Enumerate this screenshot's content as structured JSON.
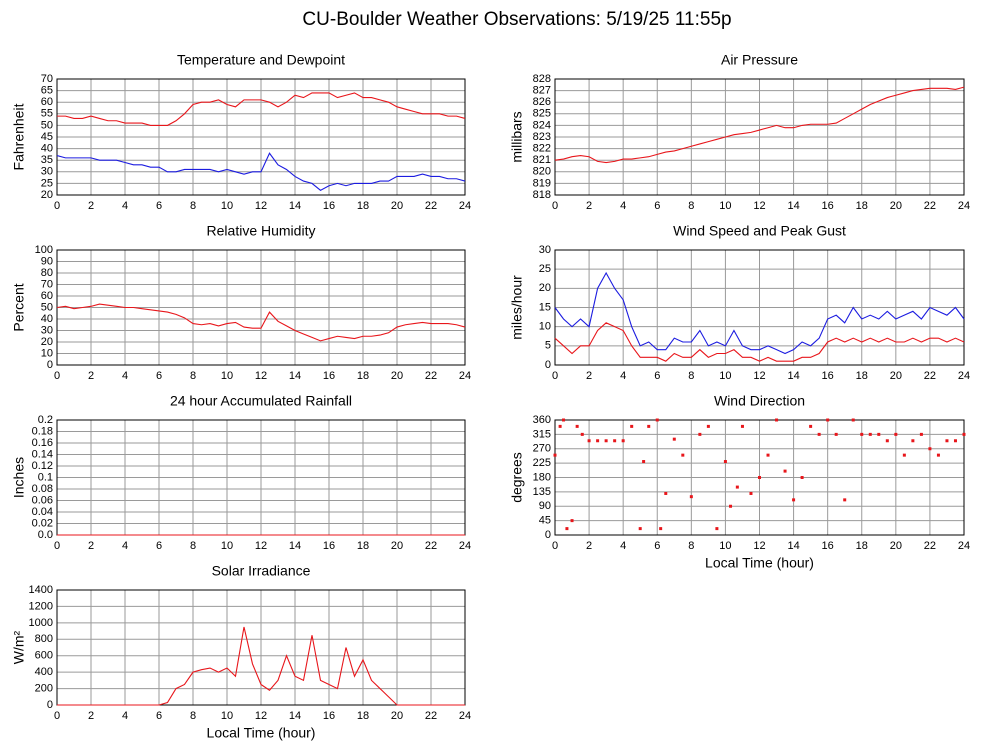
{
  "page_title": "CU-Boulder Weather Observations: 5/19/25 11:55p",
  "chart_data": [
    {
      "type": "line",
      "title": "Temperature and Dewpoint",
      "y_label": "Fahrenheit",
      "grid": true,
      "xlim": [
        0,
        24
      ],
      "xticks": [
        0,
        2,
        4,
        6,
        8,
        10,
        12,
        14,
        16,
        18,
        20,
        22,
        24
      ],
      "ylim": [
        20,
        70
      ],
      "yticks": [
        20,
        25,
        30,
        35,
        40,
        45,
        50,
        55,
        60,
        65,
        70
      ],
      "x": [
        0,
        0.5,
        1,
        1.5,
        2,
        2.5,
        3,
        3.5,
        4,
        4.5,
        5,
        5.5,
        6,
        6.5,
        7,
        7.5,
        8,
        8.5,
        9,
        9.5,
        10,
        10.5,
        11,
        11.5,
        12,
        12.5,
        13,
        13.5,
        14,
        14.5,
        15,
        15.5,
        16,
        16.5,
        17,
        17.5,
        18,
        18.5,
        19,
        19.5,
        20,
        20.5,
        21,
        21.5,
        22,
        22.5,
        23,
        23.5,
        24
      ],
      "series": [
        {
          "color": "#e8161b",
          "values": [
            54,
            54,
            53,
            53,
            54,
            53,
            52,
            52,
            51,
            51,
            51,
            50,
            50,
            50,
            52,
            55,
            59,
            60,
            60,
            61,
            59,
            58,
            61,
            61,
            61,
            60,
            58,
            60,
            63,
            62,
            64,
            64,
            64,
            62,
            63,
            64,
            62,
            62,
            61,
            60,
            58,
            57,
            56,
            55,
            55,
            55,
            54,
            54,
            53
          ]
        },
        {
          "color": "#1c1ce0",
          "values": [
            37,
            36,
            36,
            36,
            36,
            35,
            35,
            35,
            34,
            33,
            33,
            32,
            32,
            30,
            30,
            31,
            31,
            31,
            31,
            30,
            31,
            30,
            29,
            30,
            30,
            38,
            33,
            31,
            28,
            26,
            25,
            22,
            24,
            25,
            24,
            25,
            25,
            25,
            26,
            26,
            28,
            28,
            28,
            29,
            28,
            28,
            27,
            27,
            26
          ]
        }
      ]
    },
    {
      "type": "line",
      "title": "Air Pressure",
      "y_label": "millibars",
      "grid": true,
      "xlim": [
        0,
        24
      ],
      "xticks": [
        0,
        2,
        4,
        6,
        8,
        10,
        12,
        14,
        16,
        18,
        20,
        22,
        24
      ],
      "ylim": [
        818,
        828
      ],
      "yticks": [
        818,
        819,
        820,
        821,
        822,
        823,
        824,
        825,
        826,
        827,
        828
      ],
      "x": [
        0,
        0.5,
        1,
        1.5,
        2,
        2.5,
        3,
        3.5,
        4,
        4.5,
        5,
        5.5,
        6,
        6.5,
        7,
        7.5,
        8,
        8.5,
        9,
        9.5,
        10,
        10.5,
        11,
        11.5,
        12,
        12.5,
        13,
        13.5,
        14,
        14.5,
        15,
        15.5,
        16,
        16.5,
        17,
        17.5,
        18,
        18.5,
        19,
        19.5,
        20,
        20.5,
        21,
        21.5,
        22,
        22.5,
        23,
        23.5,
        24
      ],
      "series": [
        {
          "color": "#e8161b",
          "values": [
            821,
            821.1,
            821.3,
            821.4,
            821.3,
            820.9,
            820.8,
            820.9,
            821.1,
            821.1,
            821.2,
            821.3,
            821.5,
            821.7,
            821.8,
            822,
            822.2,
            822.4,
            822.6,
            822.8,
            823,
            823.2,
            823.3,
            823.4,
            823.6,
            823.8,
            824,
            823.8,
            823.8,
            824,
            824.1,
            824.1,
            824.1,
            824.2,
            824.6,
            825,
            825.4,
            825.8,
            826.1,
            826.4,
            826.6,
            826.8,
            827,
            827.1,
            827.2,
            827.2,
            827.2,
            827.1,
            827.3
          ]
        }
      ]
    },
    {
      "type": "line",
      "title": "Relative Humidity",
      "y_label": "Percent",
      "grid": true,
      "xlim": [
        0,
        24
      ],
      "xticks": [
        0,
        2,
        4,
        6,
        8,
        10,
        12,
        14,
        16,
        18,
        20,
        22,
        24
      ],
      "ylim": [
        0,
        100
      ],
      "yticks": [
        0,
        10,
        20,
        30,
        40,
        50,
        60,
        70,
        80,
        90,
        100
      ],
      "x": [
        0,
        0.5,
        1,
        1.5,
        2,
        2.5,
        3,
        3.5,
        4,
        4.5,
        5,
        5.5,
        6,
        6.5,
        7,
        7.5,
        8,
        8.5,
        9,
        9.5,
        10,
        10.5,
        11,
        11.5,
        12,
        12.5,
        13,
        13.5,
        14,
        14.5,
        15,
        15.5,
        16,
        16.5,
        17,
        17.5,
        18,
        18.5,
        19,
        19.5,
        20,
        20.5,
        21,
        21.5,
        22,
        22.5,
        23,
        23.5,
        24
      ],
      "series": [
        {
          "color": "#e8161b",
          "values": [
            50,
            51,
            49,
            50,
            51,
            53,
            52,
            51,
            50,
            50,
            49,
            48,
            47,
            46,
            44,
            41,
            36,
            35,
            36,
            34,
            36,
            37,
            33,
            32,
            32,
            46,
            38,
            34,
            30,
            27,
            24,
            21,
            23,
            25,
            24,
            23,
            25,
            25,
            26,
            28,
            33,
            35,
            36,
            37,
            36,
            36,
            36,
            35,
            33
          ]
        }
      ]
    },
    {
      "type": "line",
      "title": "Wind Speed and Peak Gust",
      "y_label": "miles/hour",
      "grid": true,
      "xlim": [
        0,
        24
      ],
      "xticks": [
        0,
        2,
        4,
        6,
        8,
        10,
        12,
        14,
        16,
        18,
        20,
        22,
        24
      ],
      "ylim": [
        0,
        30
      ],
      "yticks": [
        0,
        5,
        10,
        15,
        20,
        25,
        30
      ],
      "x": [
        0,
        0.5,
        1,
        1.5,
        2,
        2.5,
        3,
        3.5,
        4,
        4.5,
        5,
        5.5,
        6,
        6.5,
        7,
        7.5,
        8,
        8.5,
        9,
        9.5,
        10,
        10.5,
        11,
        11.5,
        12,
        12.5,
        13,
        13.5,
        14,
        14.5,
        15,
        15.5,
        16,
        16.5,
        17,
        17.5,
        18,
        18.5,
        19,
        19.5,
        20,
        20.5,
        21,
        21.5,
        22,
        22.5,
        23,
        23.5,
        24
      ],
      "series": [
        {
          "color": "#1c1ce0",
          "values": [
            15,
            12,
            10,
            12,
            10,
            20,
            24,
            20,
            17,
            10,
            5,
            6,
            4,
            4,
            7,
            6,
            6,
            9,
            5,
            6,
            5,
            9,
            5,
            4,
            4,
            5,
            4,
            3,
            4,
            6,
            5,
            7,
            12,
            13,
            11,
            15,
            12,
            13,
            12,
            14,
            12,
            13,
            14,
            12,
            15,
            14,
            13,
            15,
            12
          ]
        },
        {
          "color": "#e8161b",
          "values": [
            7,
            5,
            3,
            5,
            5,
            9,
            11,
            10,
            9,
            5,
            2,
            2,
            2,
            1,
            3,
            2,
            2,
            4,
            2,
            3,
            3,
            4,
            2,
            2,
            1,
            2,
            1,
            1,
            1,
            2,
            2,
            3,
            6,
            7,
            6,
            7,
            6,
            7,
            6,
            7,
            6,
            6,
            7,
            6,
            7,
            7,
            6,
            7,
            6
          ]
        }
      ]
    },
    {
      "type": "line",
      "title": "24 hour Accumulated Rainfall",
      "y_label": "Inches",
      "grid": true,
      "xlim": [
        0,
        24
      ],
      "xticks": [
        0,
        2,
        4,
        6,
        8,
        10,
        12,
        14,
        16,
        18,
        20,
        22,
        24
      ],
      "ylim": [
        0,
        0.2
      ],
      "yticks": [
        {
          "value": 0,
          "label": "0.0"
        },
        0.02,
        0.04,
        0.06,
        0.08,
        0.1,
        0.12,
        0.14,
        0.16,
        0.18,
        0.2
      ],
      "x": [
        0,
        24
      ],
      "series": [
        {
          "color": "#e8161b",
          "values": [
            0,
            0
          ]
        }
      ]
    },
    {
      "type": "scatter",
      "title": "Wind Direction",
      "y_label": "degrees",
      "x_label": "Local Time (hour)",
      "grid": true,
      "xlim": [
        0,
        24
      ],
      "xticks": [
        0,
        2,
        4,
        6,
        8,
        10,
        12,
        14,
        16,
        18,
        20,
        22,
        24
      ],
      "ylim": [
        0,
        360
      ],
      "yticks": [
        0,
        45,
        90,
        135,
        180,
        225,
        270,
        315,
        360
      ],
      "x": [
        0,
        0.3,
        0.5,
        0.7,
        1,
        1.3,
        1.6,
        2,
        2.5,
        3,
        3.5,
        4,
        4.5,
        5,
        5.2,
        5.5,
        6,
        6.2,
        6.5,
        7,
        7.5,
        8,
        8.5,
        9,
        9.5,
        10,
        10.3,
        10.7,
        11,
        11.5,
        12,
        12.5,
        13,
        13.5,
        14,
        14.5,
        15,
        15.5,
        16,
        16.5,
        17,
        17.5,
        18,
        18.5,
        19,
        19.5,
        20,
        20.5,
        21,
        21.5,
        22,
        22.5,
        23,
        23.5,
        24
      ],
      "series": [
        {
          "color": "#e8161b",
          "values": [
            250,
            340,
            360,
            20,
            45,
            340,
            315,
            295,
            295,
            295,
            295,
            295,
            340,
            20,
            230,
            340,
            360,
            20,
            130,
            300,
            250,
            120,
            315,
            340,
            20,
            230,
            90,
            150,
            340,
            130,
            180,
            250,
            360,
            200,
            110,
            180,
            340,
            315,
            360,
            315,
            110,
            360,
            315,
            315,
            315,
            295,
            315,
            250,
            295,
            315,
            270,
            250,
            295,
            295,
            315
          ]
        }
      ]
    },
    {
      "type": "line",
      "title": "Solar Irradiance",
      "y_label": "W/m²",
      "x_label": "Local Time (hour)",
      "grid": true,
      "xlim": [
        0,
        24
      ],
      "xticks": [
        0,
        2,
        4,
        6,
        8,
        10,
        12,
        14,
        16,
        18,
        20,
        22,
        24
      ],
      "ylim": [
        0,
        1400
      ],
      "yticks": [
        0,
        200,
        400,
        600,
        800,
        1000,
        1200,
        1400
      ],
      "x": [
        0,
        0.5,
        1,
        1.5,
        2,
        2.5,
        3,
        3.5,
        4,
        4.5,
        5,
        5.5,
        6,
        6.5,
        7,
        7.5,
        8,
        8.5,
        9,
        9.5,
        10,
        10.5,
        11,
        11.5,
        12,
        12.5,
        13,
        13.5,
        14,
        14.5,
        15,
        15.5,
        16,
        16.5,
        17,
        17.5,
        18,
        18.5,
        19,
        19.5,
        20,
        20.5,
        21,
        21.5,
        22,
        22.5,
        23,
        23.5,
        24
      ],
      "series": [
        {
          "color": "#e8161b",
          "values": [
            0,
            0,
            0,
            0,
            0,
            0,
            0,
            0,
            0,
            0,
            0,
            0,
            0,
            30,
            200,
            250,
            400,
            430,
            450,
            400,
            450,
            350,
            950,
            500,
            250,
            180,
            300,
            600,
            350,
            300,
            850,
            300,
            250,
            200,
            700,
            350,
            550,
            300,
            200,
            100,
            0,
            0,
            0,
            0,
            0,
            0,
            0,
            0,
            0
          ]
        }
      ]
    }
  ]
}
